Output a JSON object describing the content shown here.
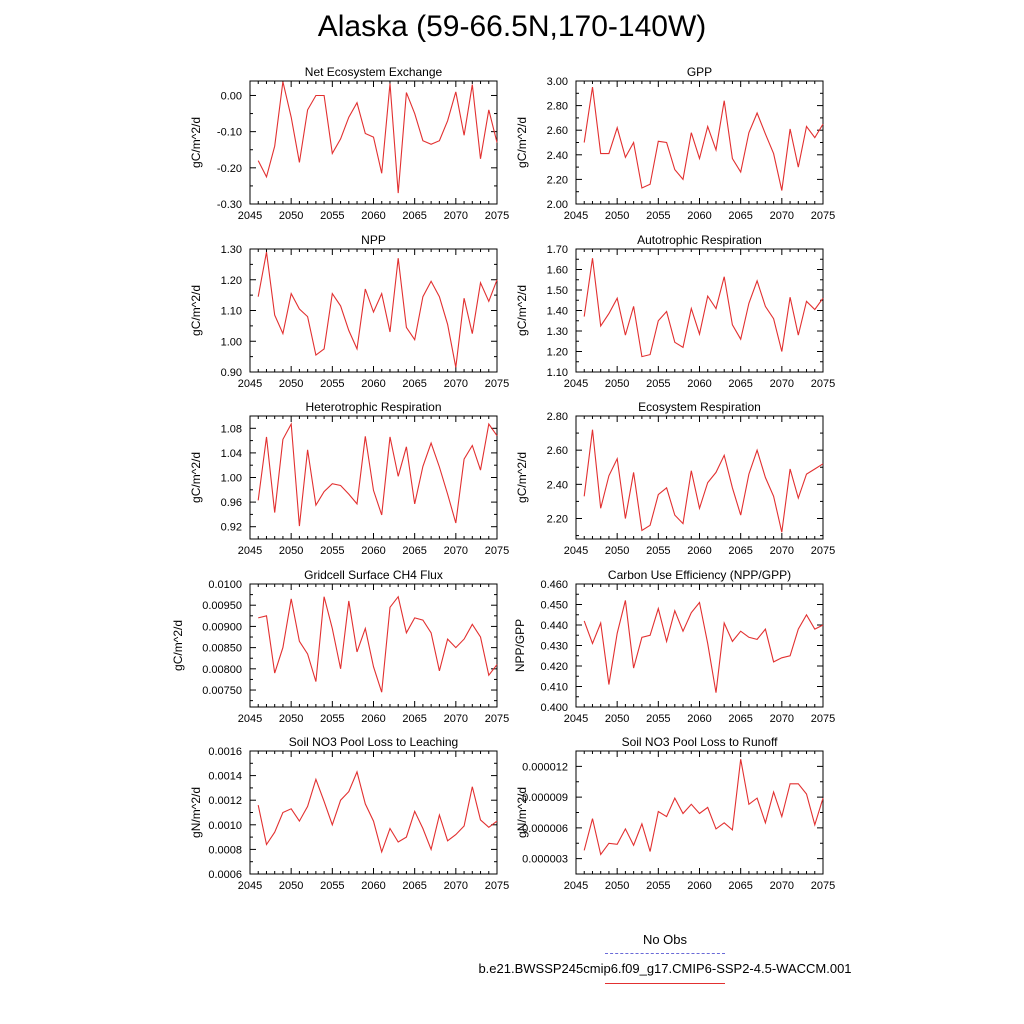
{
  "title": "Alaska (59-66.5N,170-140W)",
  "legend": {
    "obs_label": "No Obs",
    "obs_color": "#6a6ad8",
    "run_label": "b.e21.BWSSP245cmip6.f09_g17.CMIP6-SSP2-4.5-WACCM.001",
    "run_color": "#e23030"
  },
  "chart_data": [
    {
      "type": "line",
      "title": "Net Ecosystem Exchange",
      "ylabel": "gC/m^2/d",
      "xlim": [
        2045,
        2075
      ],
      "ylim": [
        -0.3,
        0.04
      ],
      "xticks": [
        2045,
        2050,
        2055,
        2060,
        2065,
        2070,
        2075
      ],
      "yticks": [
        -0.3,
        -0.2,
        -0.1,
        0.0
      ],
      "ytick_labels": [
        "-0.30",
        "-0.20",
        "-0.10",
        "0.00"
      ],
      "x": [
        2046,
        2047,
        2048,
        2049,
        2050,
        2051,
        2052,
        2053,
        2054,
        2055,
        2056,
        2057,
        2058,
        2059,
        2060,
        2061,
        2062,
        2063,
        2064,
        2065,
        2066,
        2067,
        2068,
        2069,
        2070,
        2071,
        2072,
        2073,
        2074,
        2075
      ],
      "values": [
        -0.18,
        -0.225,
        -0.14,
        0.038,
        -0.06,
        -0.185,
        -0.04,
        0.0,
        0.0,
        -0.16,
        -0.12,
        -0.06,
        -0.02,
        -0.105,
        -0.115,
        -0.215,
        0.033,
        -0.27,
        0.008,
        -0.05,
        -0.125,
        -0.135,
        -0.125,
        -0.07,
        0.01,
        -0.11,
        0.03,
        -0.175,
        -0.04,
        -0.13
      ]
    },
    {
      "type": "line",
      "title": "GPP",
      "ylabel": "gC/m^2/d",
      "xlim": [
        2045,
        2075
      ],
      "ylim": [
        2.0,
        3.0
      ],
      "xticks": [
        2045,
        2050,
        2055,
        2060,
        2065,
        2070,
        2075
      ],
      "yticks": [
        2.0,
        2.2,
        2.4,
        2.6,
        2.8,
        3.0
      ],
      "ytick_labels": [
        "2.00",
        "2.20",
        "2.40",
        "2.60",
        "2.80",
        "3.00"
      ],
      "x": [
        2046,
        2047,
        2048,
        2049,
        2050,
        2051,
        2052,
        2053,
        2054,
        2055,
        2056,
        2057,
        2058,
        2059,
        2060,
        2061,
        2062,
        2063,
        2064,
        2065,
        2066,
        2067,
        2068,
        2069,
        2070,
        2071,
        2072,
        2073,
        2074,
        2075
      ],
      "values": [
        2.5,
        2.95,
        2.41,
        2.41,
        2.62,
        2.38,
        2.5,
        2.13,
        2.16,
        2.51,
        2.5,
        2.28,
        2.2,
        2.58,
        2.37,
        2.63,
        2.44,
        2.84,
        2.37,
        2.26,
        2.58,
        2.74,
        2.57,
        2.41,
        2.11,
        2.61,
        2.3,
        2.63,
        2.54,
        2.65
      ]
    },
    {
      "type": "line",
      "title": "NPP",
      "ylabel": "gC/m^2/d",
      "xlim": [
        2045,
        2075
      ],
      "ylim": [
        0.9,
        1.3
      ],
      "xticks": [
        2045,
        2050,
        2055,
        2060,
        2065,
        2070,
        2075
      ],
      "yticks": [
        0.9,
        1.0,
        1.1,
        1.2,
        1.3
      ],
      "ytick_labels": [
        "0.90",
        "1.00",
        "1.10",
        "1.20",
        "1.30"
      ],
      "x": [
        2046,
        2047,
        2048,
        2049,
        2050,
        2051,
        2052,
        2053,
        2054,
        2055,
        2056,
        2057,
        2058,
        2059,
        2060,
        2061,
        2062,
        2063,
        2064,
        2065,
        2066,
        2067,
        2068,
        2069,
        2070,
        2071,
        2072,
        2073,
        2074,
        2075
      ],
      "values": [
        1.145,
        1.29,
        1.085,
        1.025,
        1.155,
        1.105,
        1.08,
        0.955,
        0.975,
        1.155,
        1.115,
        1.035,
        0.975,
        1.17,
        1.095,
        1.155,
        1.03,
        1.27,
        1.045,
        1.005,
        1.145,
        1.195,
        1.145,
        1.055,
        0.915,
        1.14,
        1.025,
        1.19,
        1.13,
        1.2
      ]
    },
    {
      "type": "line",
      "title": "Autotrophic Respiration",
      "ylabel": "gC/m^2/d",
      "xlim": [
        2045,
        2075
      ],
      "ylim": [
        1.1,
        1.7
      ],
      "xticks": [
        2045,
        2050,
        2055,
        2060,
        2065,
        2070,
        2075
      ],
      "yticks": [
        1.1,
        1.2,
        1.3,
        1.4,
        1.5,
        1.6,
        1.7
      ],
      "ytick_labels": [
        "1.10",
        "1.20",
        "1.30",
        "1.40",
        "1.50",
        "1.60",
        "1.70"
      ],
      "x": [
        2046,
        2047,
        2048,
        2049,
        2050,
        2051,
        2052,
        2053,
        2054,
        2055,
        2056,
        2057,
        2058,
        2059,
        2060,
        2061,
        2062,
        2063,
        2064,
        2065,
        2066,
        2067,
        2068,
        2069,
        2070,
        2071,
        2072,
        2073,
        2074,
        2075
      ],
      "values": [
        1.37,
        1.655,
        1.325,
        1.385,
        1.46,
        1.28,
        1.42,
        1.175,
        1.185,
        1.35,
        1.395,
        1.245,
        1.22,
        1.41,
        1.285,
        1.47,
        1.41,
        1.565,
        1.33,
        1.26,
        1.435,
        1.545,
        1.42,
        1.36,
        1.2,
        1.465,
        1.28,
        1.445,
        1.405,
        1.46
      ]
    },
    {
      "type": "line",
      "title": "Heterotrophic Respiration",
      "ylabel": "gC/m^2/d",
      "xlim": [
        2045,
        2075
      ],
      "ylim": [
        0.9,
        1.1
      ],
      "xticks": [
        2045,
        2050,
        2055,
        2060,
        2065,
        2070,
        2075
      ],
      "yticks": [
        0.92,
        0.96,
        1.0,
        1.04,
        1.08
      ],
      "ytick_labels": [
        "0.92",
        "0.96",
        "1.00",
        "1.04",
        "1.08"
      ],
      "x": [
        2046,
        2047,
        2048,
        2049,
        2050,
        2051,
        2052,
        2053,
        2054,
        2055,
        2056,
        2057,
        2058,
        2059,
        2060,
        2061,
        2062,
        2063,
        2064,
        2065,
        2066,
        2067,
        2068,
        2069,
        2070,
        2071,
        2072,
        2073,
        2074,
        2075
      ],
      "values": [
        0.963,
        1.066,
        0.943,
        1.062,
        1.087,
        0.921,
        1.045,
        0.955,
        0.977,
        0.99,
        0.987,
        0.973,
        0.957,
        1.067,
        0.979,
        0.939,
        1.066,
        1.002,
        1.05,
        0.957,
        1.018,
        1.056,
        1.017,
        0.973,
        0.926,
        1.03,
        1.052,
        1.012,
        1.087,
        1.068
      ]
    },
    {
      "type": "line",
      "title": "Ecosystem Respiration",
      "ylabel": "gC/m^2/d",
      "xlim": [
        2045,
        2075
      ],
      "ylim": [
        2.08,
        2.8
      ],
      "xticks": [
        2045,
        2050,
        2055,
        2060,
        2065,
        2070,
        2075
      ],
      "yticks": [
        2.2,
        2.4,
        2.6,
        2.8
      ],
      "ytick_labels": [
        "2.20",
        "2.40",
        "2.60",
        "2.80"
      ],
      "x": [
        2046,
        2047,
        2048,
        2049,
        2050,
        2051,
        2052,
        2053,
        2054,
        2055,
        2056,
        2057,
        2058,
        2059,
        2060,
        2061,
        2062,
        2063,
        2064,
        2065,
        2066,
        2067,
        2068,
        2069,
        2070,
        2071,
        2072,
        2073,
        2074,
        2075
      ],
      "values": [
        2.33,
        2.72,
        2.26,
        2.45,
        2.55,
        2.2,
        2.47,
        2.13,
        2.16,
        2.34,
        2.38,
        2.22,
        2.17,
        2.48,
        2.26,
        2.41,
        2.47,
        2.57,
        2.38,
        2.22,
        2.46,
        2.6,
        2.44,
        2.33,
        2.12,
        2.49,
        2.32,
        2.46,
        2.49,
        2.52
      ]
    },
    {
      "type": "line",
      "title": "Gridcell Surface CH4 Flux",
      "ylabel": "gC/m^2/d",
      "xlim": [
        2045,
        2075
      ],
      "ylim": [
        0.0071,
        0.01
      ],
      "xticks": [
        2045,
        2050,
        2055,
        2060,
        2065,
        2070,
        2075
      ],
      "yticks": [
        0.0075,
        0.008,
        0.0085,
        0.009,
        0.0095,
        0.01
      ],
      "ytick_labels": [
        "0.00750",
        "0.00800",
        "0.00850",
        "0.00900",
        "0.00950",
        "0.0100"
      ],
      "x": [
        2046,
        2047,
        2048,
        2049,
        2050,
        2051,
        2052,
        2053,
        2054,
        2055,
        2056,
        2057,
        2058,
        2059,
        2060,
        2061,
        2062,
        2063,
        2064,
        2065,
        2066,
        2067,
        2068,
        2069,
        2070,
        2071,
        2072,
        2073,
        2074,
        2075
      ],
      "values": [
        0.0092,
        0.00925,
        0.0079,
        0.0085,
        0.00965,
        0.00865,
        0.00835,
        0.0077,
        0.0097,
        0.00895,
        0.008,
        0.0096,
        0.0084,
        0.00895,
        0.00805,
        0.00745,
        0.00945,
        0.0097,
        0.00885,
        0.0092,
        0.00915,
        0.00885,
        0.00795,
        0.0087,
        0.0085,
        0.0087,
        0.00905,
        0.00875,
        0.00785,
        0.0081
      ]
    },
    {
      "type": "line",
      "title": "Carbon Use Efficiency (NPP/GPP)",
      "ylabel": "NPP/GPP",
      "xlim": [
        2045,
        2075
      ],
      "ylim": [
        0.4,
        0.46
      ],
      "xticks": [
        2045,
        2050,
        2055,
        2060,
        2065,
        2070,
        2075
      ],
      "yticks": [
        0.4,
        0.41,
        0.42,
        0.43,
        0.44,
        0.45,
        0.46
      ],
      "ytick_labels": [
        "0.400",
        "0.410",
        "0.420",
        "0.430",
        "0.440",
        "0.450",
        "0.460"
      ],
      "x": [
        2046,
        2047,
        2048,
        2049,
        2050,
        2051,
        2052,
        2053,
        2054,
        2055,
        2056,
        2057,
        2058,
        2059,
        2060,
        2061,
        2062,
        2063,
        2064,
        2065,
        2066,
        2067,
        2068,
        2069,
        2070,
        2071,
        2072,
        2073,
        2074,
        2075
      ],
      "values": [
        0.442,
        0.431,
        0.441,
        0.411,
        0.436,
        0.452,
        0.419,
        0.434,
        0.435,
        0.448,
        0.432,
        0.447,
        0.437,
        0.446,
        0.451,
        0.431,
        0.407,
        0.441,
        0.432,
        0.437,
        0.434,
        0.433,
        0.438,
        0.422,
        0.424,
        0.425,
        0.438,
        0.445,
        0.438,
        0.44
      ]
    },
    {
      "type": "line",
      "title": "Soil NO3 Pool Loss to Leaching",
      "ylabel": "gN/m^2/d",
      "xlim": [
        2045,
        2075
      ],
      "ylim": [
        0.0006,
        0.0016
      ],
      "xticks": [
        2045,
        2050,
        2055,
        2060,
        2065,
        2070,
        2075
      ],
      "yticks": [
        0.0006,
        0.0008,
        0.001,
        0.0012,
        0.0014,
        0.0016
      ],
      "ytick_labels": [
        "0.0006",
        "0.0008",
        "0.0010",
        "0.0012",
        "0.0014",
        "0.0016"
      ],
      "x": [
        2046,
        2047,
        2048,
        2049,
        2050,
        2051,
        2052,
        2053,
        2054,
        2055,
        2056,
        2057,
        2058,
        2059,
        2060,
        2061,
        2062,
        2063,
        2064,
        2065,
        2066,
        2067,
        2068,
        2069,
        2070,
        2071,
        2072,
        2073,
        2074,
        2075
      ],
      "values": [
        0.00116,
        0.00084,
        0.00094,
        0.0011,
        0.00113,
        0.00103,
        0.00115,
        0.00137,
        0.00119,
        0.001,
        0.0012,
        0.00127,
        0.00143,
        0.00117,
        0.00103,
        0.00078,
        0.00097,
        0.00086,
        0.0009,
        0.00111,
        0.00097,
        0.0008,
        0.00108,
        0.00087,
        0.00092,
        0.00099,
        0.00131,
        0.00104,
        0.00098,
        0.00103
      ]
    },
    {
      "type": "line",
      "title": "Soil NO3 Pool Loss to Runoff",
      "ylabel": "gN/m^2/d",
      "xlim": [
        2045,
        2075
      ],
      "ylim": [
        1.5e-06,
        1.35e-05
      ],
      "xticks": [
        2045,
        2050,
        2055,
        2060,
        2065,
        2070,
        2075
      ],
      "yticks": [
        3e-06,
        6e-06,
        9e-06,
        1.2e-05
      ],
      "ytick_labels": [
        "0.000003",
        "0.000006",
        "0.000009",
        "0.000012"
      ],
      "x": [
        2046,
        2047,
        2048,
        2049,
        2050,
        2051,
        2052,
        2053,
        2054,
        2055,
        2056,
        2057,
        2058,
        2059,
        2060,
        2061,
        2062,
        2063,
        2064,
        2065,
        2066,
        2067,
        2068,
        2069,
        2070,
        2071,
        2072,
        2073,
        2074,
        2075
      ],
      "values": [
        3.8e-06,
        6.9e-06,
        3.4e-06,
        4.5e-06,
        4.4e-06,
        5.9e-06,
        4.3e-06,
        6.4e-06,
        3.7e-06,
        7.6e-06,
        7.1e-06,
        8.9e-06,
        7.4e-06,
        8.3e-06,
        7.4e-06,
        8e-06,
        5.9e-06,
        6.5e-06,
        5.8e-06,
        1.27e-05,
        8.3e-06,
        8.9e-06,
        6.5e-06,
        9.5e-06,
        7.1e-06,
        1.03e-05,
        1.03e-05,
        9.3e-06,
        6.3e-06,
        8.9e-06
      ]
    }
  ]
}
